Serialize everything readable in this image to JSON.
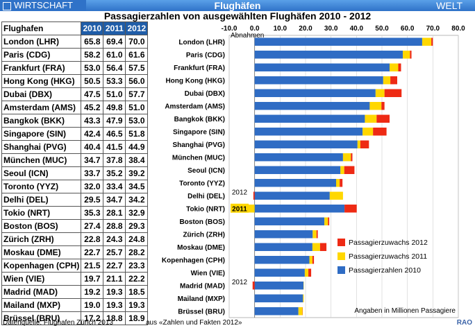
{
  "header": {
    "category": "WIRTSCHAFT",
    "title": "Flughäfen",
    "brand": "WELT",
    "subtitle": "Passagierzahlen von ausgewählten Flughäfen 2010 - 2012"
  },
  "table": {
    "columns": [
      "Flughafen",
      "2010",
      "2011",
      "2012"
    ],
    "rows": [
      [
        "London (LHR)",
        "65.8",
        "69.4",
        "70.0"
      ],
      [
        "Paris (CDG)",
        "58.2",
        "61.0",
        "61.6"
      ],
      [
        "Frankfurt (FRA)",
        "53.0",
        "56.4",
        "57.5"
      ],
      [
        "Hong Kong (HKG)",
        "50.5",
        "53.3",
        "56.0"
      ],
      [
        "Dubai (DBX)",
        "47.5",
        "51.0",
        "57.7"
      ],
      [
        "Amsterdam (AMS)",
        "45.2",
        "49.8",
        "51.0"
      ],
      [
        "Bangkok (BKK)",
        "43.3",
        "47.9",
        "53.0"
      ],
      [
        "Singapore (SIN)",
        "42.4",
        "46.5",
        "51.8"
      ],
      [
        "Shanghai (PVG)",
        "40.4",
        "41.5",
        "44.9"
      ],
      [
        "München (MUC)",
        "34.7",
        "37.8",
        "38.4"
      ],
      [
        "Seoul (ICN)",
        "33.7",
        "35.2",
        "39.2"
      ],
      [
        "Toronto (YYZ)",
        "32.0",
        "33.4",
        "34.5"
      ],
      [
        "Delhi (DEL)",
        "29.5",
        "34.7",
        "34.2"
      ],
      [
        "Tokio (NRT)",
        "35.3",
        "28.1",
        "32.9"
      ],
      [
        "Boston (BOS)",
        "27.4",
        "28.8",
        "29.3"
      ],
      [
        "Zürich (ZRH)",
        "22.8",
        "24.3",
        "24.8"
      ],
      [
        "Moskau (DME)",
        "22.7",
        "25.7",
        "28.2"
      ],
      [
        "Kopenhagen (CPH)",
        "21.5",
        "22.7",
        "23.3"
      ],
      [
        "Wien (VIE)",
        "19.7",
        "21.1",
        "22.2"
      ],
      [
        "Madrid (MAD)",
        "19.2",
        "19.3",
        "18.5"
      ],
      [
        "Mailand (MXP)",
        "19.0",
        "19.3",
        "19.3"
      ],
      [
        "Brüssel (BRU)",
        "17.2",
        "18.8",
        "18.9"
      ]
    ]
  },
  "chart_data": {
    "type": "bar",
    "orientation": "horizontal",
    "stacked": true,
    "categories": [
      "London (LHR)",
      "Paris (CDG)",
      "Frankfurt (FRA)",
      "Hong Kong (HKG)",
      "Dubai (DBX)",
      "Amsterdam (AMS)",
      "Bangkok (BKK)",
      "Singapore (SIN)",
      "Shanghai (PVG)",
      "München (MUC)",
      "Seoul (ICN)",
      "Toronto (YYZ)",
      "Delhi (DEL)",
      "Tokio (NRT)",
      "Boston (BOS)",
      "Zürich (ZRH)",
      "Moskau (DME)",
      "Kopenhagen (CPH)",
      "Wien (VIE)",
      "Madrid (MAD)",
      "Mailand (MXP)",
      "Brüssel (BRU)"
    ],
    "series": [
      {
        "name": "Passagierzahlen 2010",
        "color": "#2f6cc4",
        "values": [
          65.8,
          58.2,
          53.0,
          50.5,
          47.5,
          45.2,
          43.3,
          42.4,
          40.4,
          34.7,
          33.7,
          32.0,
          29.5,
          35.3,
          27.4,
          22.8,
          22.7,
          21.5,
          19.7,
          19.2,
          19.0,
          17.2
        ]
      },
      {
        "name": "Passagierzuwachs 2011",
        "color": "#ffd700",
        "values": [
          3.6,
          2.8,
          3.4,
          2.8,
          3.5,
          4.6,
          4.6,
          4.1,
          1.1,
          3.1,
          1.5,
          1.4,
          5.2,
          -7.2,
          1.4,
          1.5,
          3.0,
          1.2,
          1.4,
          0.1,
          0.3,
          1.6
        ]
      },
      {
        "name": "Passagierzuwachs 2012",
        "color": "#ee2a14",
        "values": [
          0.6,
          0.6,
          1.1,
          2.7,
          6.7,
          1.2,
          5.1,
          5.3,
          3.4,
          0.6,
          4.0,
          1.1,
          -0.5,
          4.8,
          0.5,
          0.5,
          2.5,
          0.6,
          1.1,
          -0.8,
          0.0,
          0.1
        ]
      }
    ],
    "x_ticks": [
      "-10.0",
      "0.0",
      "10.0",
      "20.0",
      "30.0",
      "40.0",
      "50.0",
      "60.0",
      "70.0",
      "80.0"
    ],
    "xlim": [
      -10,
      80
    ],
    "negative_label": "Abnahmen",
    "annotations": [
      {
        "text": "2012",
        "category": "Delhi (DEL)"
      },
      {
        "text": "2011",
        "category": "Tokio (NRT)"
      },
      {
        "text": "2012",
        "category": "Madrid (MAD)"
      }
    ],
    "legend": {
      "items": [
        "Passagierzuwachs 2012",
        "Passagierzuwachs 2011",
        "Passagierzahlen 2010"
      ],
      "placement": "bottom-right"
    },
    "unit_note": "Angaben in Millionen Passagiere",
    "grid": true
  },
  "footer": {
    "source": "Datenquelle: Flughafen Zürich  2013",
    "source2": "aus «Zahlen und Fakten 2012»",
    "agency": "RAO"
  }
}
